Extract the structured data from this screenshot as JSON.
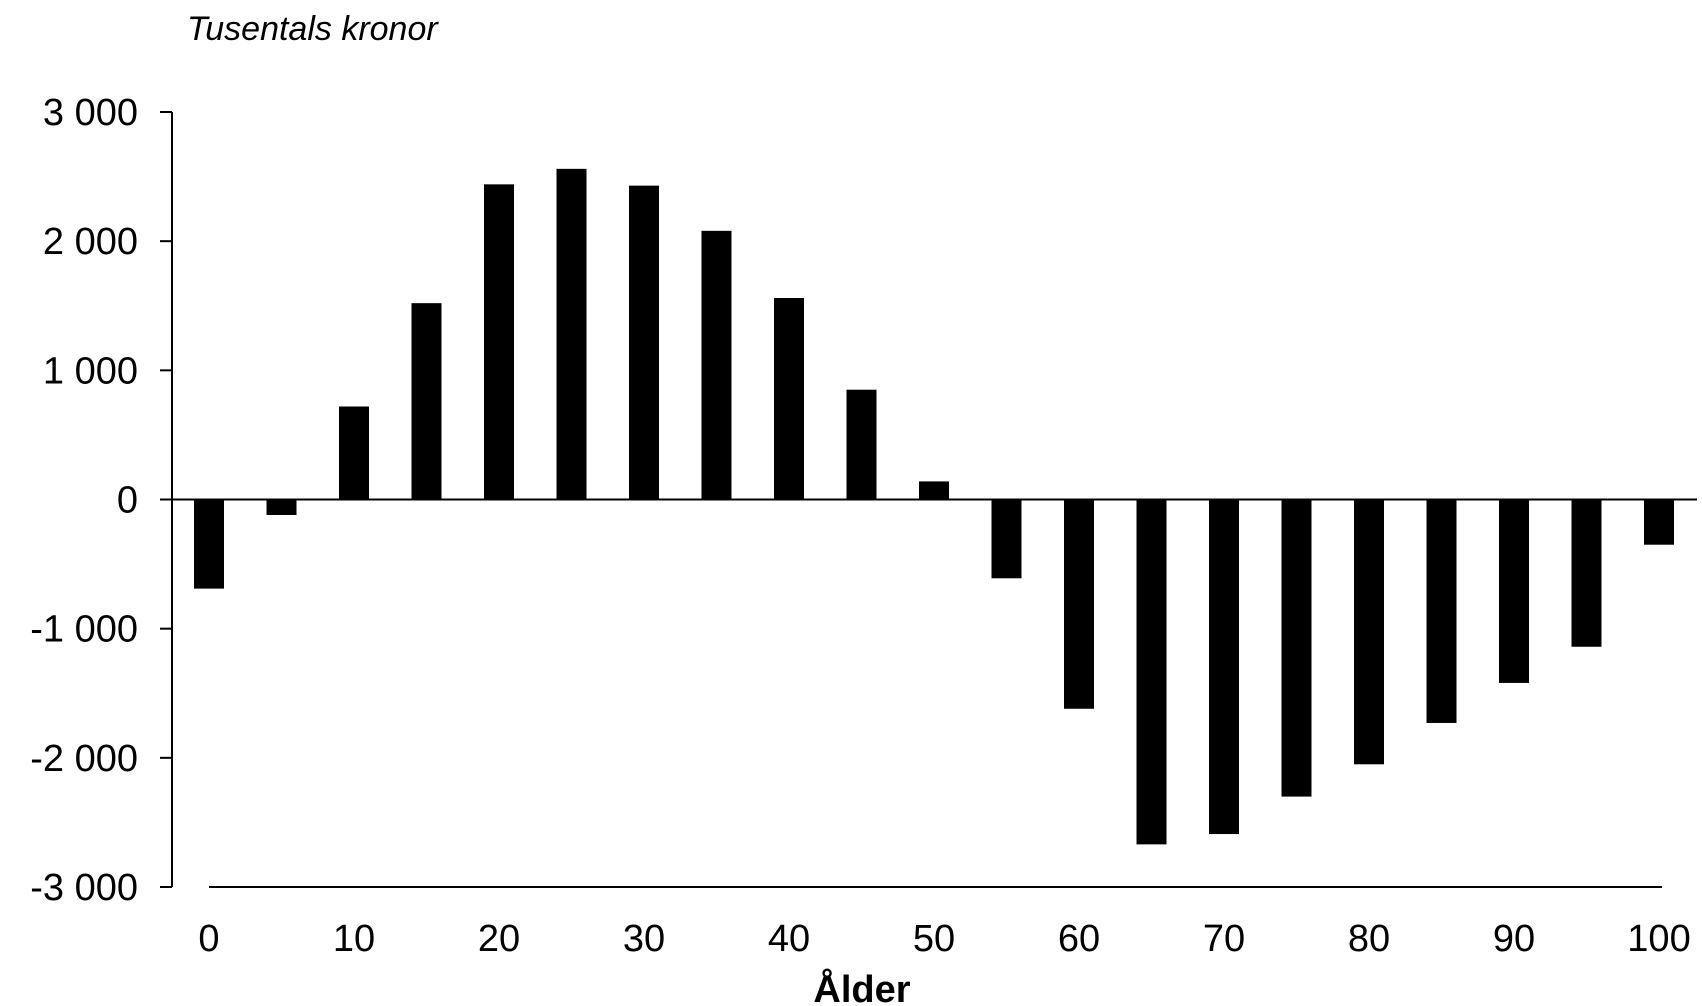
{
  "chart_data": {
    "type": "bar",
    "title": "",
    "ylabel": "Tusentals kronor",
    "xlabel": "Ålder",
    "categories": [
      0,
      5,
      10,
      15,
      20,
      25,
      30,
      35,
      40,
      45,
      50,
      55,
      60,
      65,
      70,
      75,
      80,
      85,
      90,
      95,
      100
    ],
    "values": [
      -690,
      -120,
      720,
      1520,
      2440,
      2560,
      2430,
      2080,
      1560,
      850,
      140,
      -610,
      -1620,
      -2670,
      -2590,
      -2300,
      -2050,
      -1730,
      -1420,
      -1140,
      -350
    ],
    "ylim": [
      -3000,
      3000
    ],
    "y_ticks": [
      3000,
      2000,
      1000,
      0,
      -1000,
      -2000,
      -3000
    ],
    "y_tick_labels": [
      "3 000",
      "2 000",
      "1 000",
      "0",
      "-1 000",
      "-2 000",
      "-3 000"
    ],
    "x_ticks": [
      0,
      10,
      20,
      30,
      40,
      50,
      60,
      70,
      80,
      90,
      100
    ],
    "x_tick_labels": [
      "0",
      "10",
      "20",
      "30",
      "40",
      "50",
      "60",
      "70",
      "80",
      "90",
      "100"
    ],
    "bar_color": "#000000",
    "grid": false,
    "legend": "none"
  }
}
